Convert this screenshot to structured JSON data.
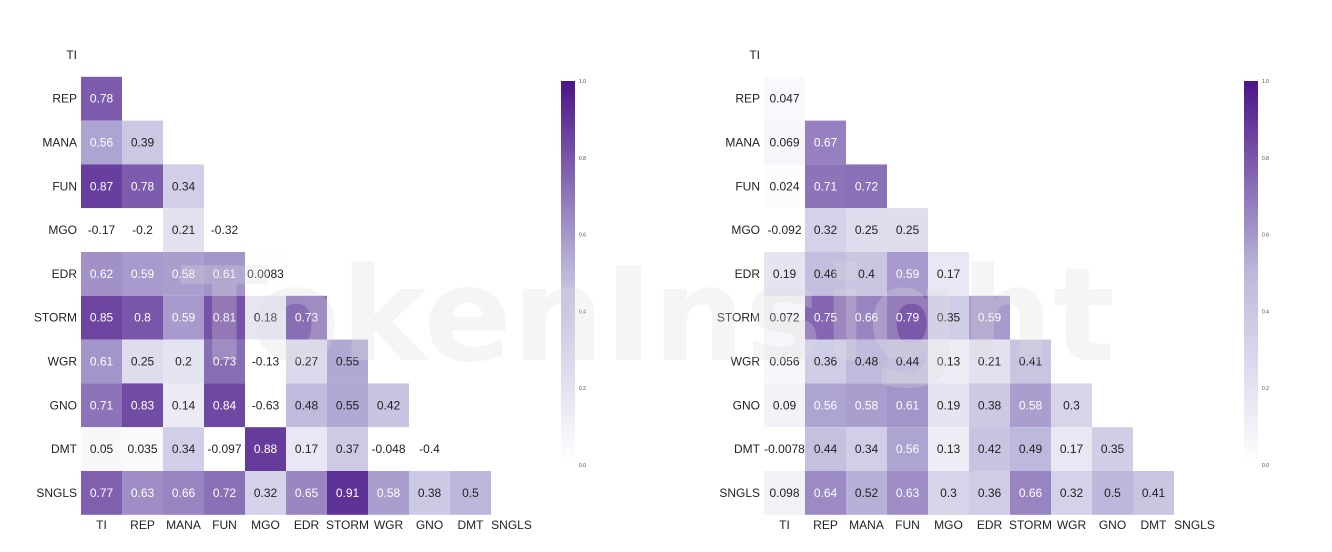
{
  "watermark": "TokenInsight",
  "chart_data": [
    {
      "type": "heatmap",
      "labels": [
        "TI",
        "REP",
        "MANA",
        "FUN",
        "MGO",
        "EDR",
        "STORM",
        "WGR",
        "GNO",
        "DMT",
        "SNGLS"
      ],
      "rows": [
        [],
        [
          0.78
        ],
        [
          0.56,
          0.39
        ],
        [
          0.87,
          0.78,
          0.34
        ],
        [
          -0.17,
          -0.2,
          0.21,
          -0.32
        ],
        [
          0.62,
          0.59,
          0.58,
          0.61,
          0.0083
        ],
        [
          0.85,
          0.8,
          0.59,
          0.81,
          0.18,
          0.73
        ],
        [
          0.61,
          0.25,
          0.2,
          0.73,
          -0.13,
          0.27,
          0.55
        ],
        [
          0.71,
          0.83,
          0.14,
          0.84,
          -0.63,
          0.48,
          0.55,
          0.42
        ],
        [
          0.05,
          0.035,
          0.34,
          -0.097,
          0.88,
          0.17,
          0.37,
          -0.048,
          -0.4
        ],
        [
          0.77,
          0.63,
          0.66,
          0.72,
          0.32,
          0.65,
          0.91,
          0.58,
          0.38,
          0.5
        ]
      ],
      "colorbar": {
        "range": [
          0.0,
          1.0
        ],
        "ticks": [
          "0.0",
          "0.2",
          "0.4",
          "0.6",
          "0.8",
          "1.0"
        ]
      },
      "colormap": {
        "low": "#ffffff",
        "high": "#4b1488"
      }
    },
    {
      "type": "heatmap",
      "labels": [
        "TI",
        "REP",
        "MANA",
        "FUN",
        "MGO",
        "EDR",
        "STORM",
        "WGR",
        "GNO",
        "DMT",
        "SNGLS"
      ],
      "rows": [
        [],
        [
          0.047
        ],
        [
          0.069,
          0.67
        ],
        [
          0.024,
          0.71,
          0.72
        ],
        [
          -0.092,
          0.32,
          0.25,
          0.25
        ],
        [
          0.19,
          0.46,
          0.4,
          0.59,
          0.17
        ],
        [
          0.072,
          0.75,
          0.66,
          0.79,
          0.35,
          0.59
        ],
        [
          0.056,
          0.36,
          0.48,
          0.44,
          0.13,
          0.21,
          0.41
        ],
        [
          0.09,
          0.56,
          0.58,
          0.61,
          0.19,
          0.38,
          0.58,
          0.3
        ],
        [
          -0.0078,
          0.44,
          0.34,
          0.56,
          0.13,
          0.42,
          0.49,
          0.17,
          0.35
        ],
        [
          0.098,
          0.64,
          0.52,
          0.63,
          0.3,
          0.36,
          0.66,
          0.32,
          0.5,
          0.41
        ]
      ],
      "colorbar": {
        "range": [
          0.0,
          1.0
        ],
        "ticks": [
          "0.0",
          "0.2",
          "0.4",
          "0.6",
          "0.8",
          "1.0"
        ]
      },
      "colormap": {
        "low": "#ffffff",
        "high": "#4b1488"
      }
    }
  ]
}
